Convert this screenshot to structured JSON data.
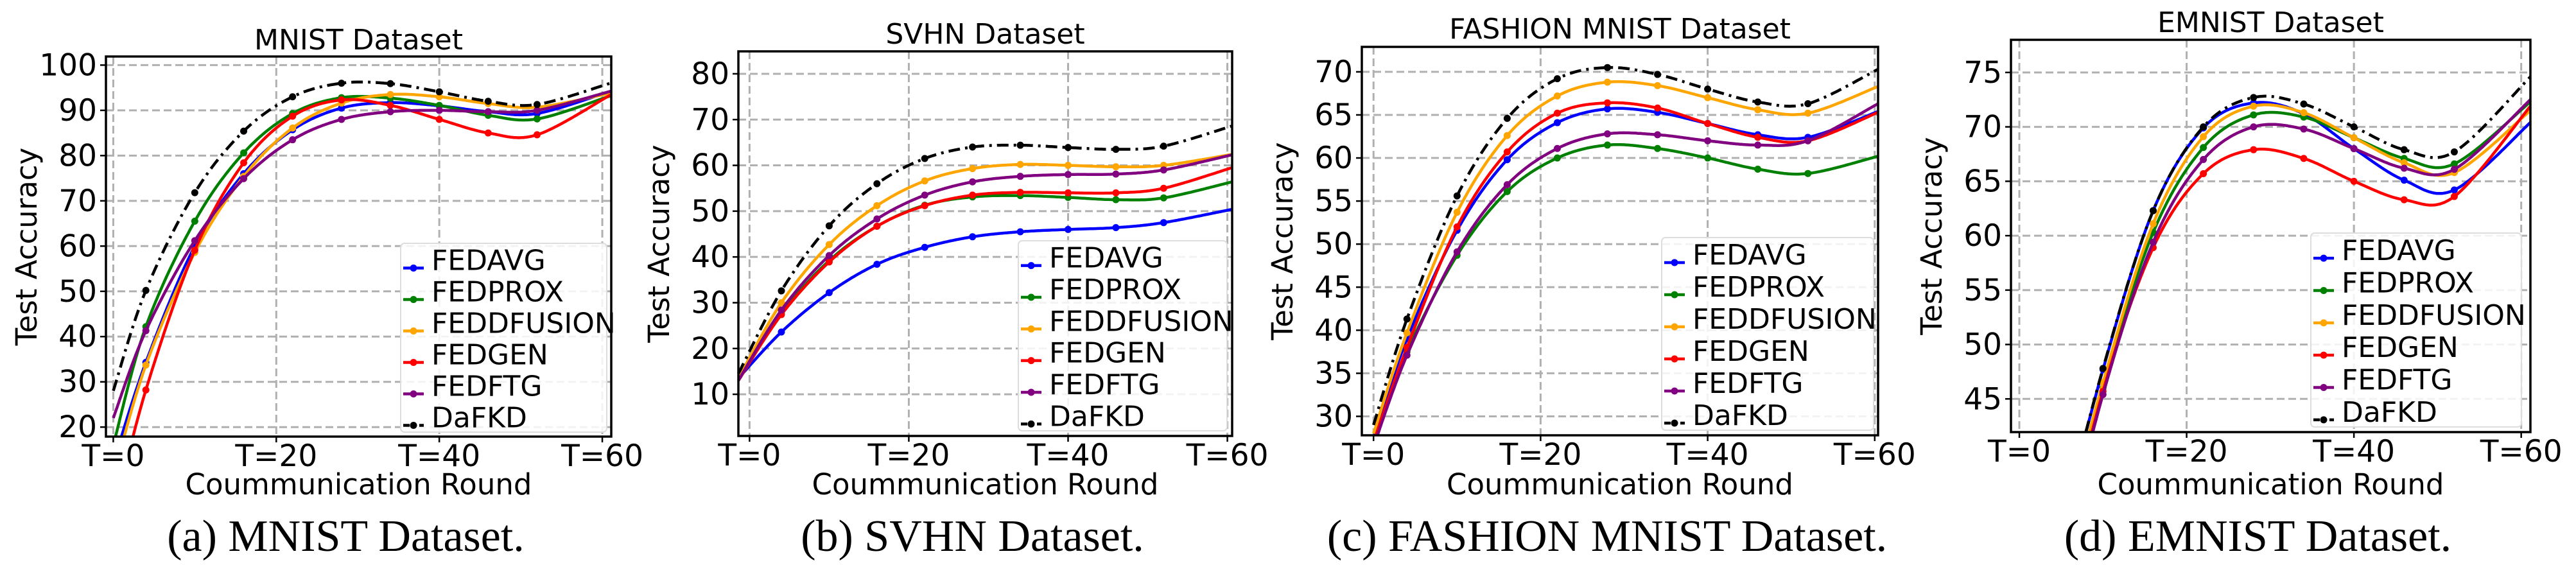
{
  "chart_data": [
    {
      "type": "line",
      "title": "MNIST Dataset",
      "caption": "(a) MNIST Dataset.",
      "xlabel": "Coummunication Round",
      "ylabel": "Test Accuracy",
      "xlim": [
        -0.9,
        61.1
      ],
      "ylim": [
        17.9,
        101.9
      ],
      "xticks": [
        0,
        20,
        40,
        60
      ],
      "xtick_labels": [
        "T=0",
        "T=20",
        "T=40",
        "T=60"
      ],
      "yticks": [
        20,
        30,
        40,
        50,
        60,
        70,
        80,
        90,
        100
      ],
      "grid": true,
      "legend": "lower-right",
      "x": [
        0,
        4,
        10,
        16,
        22,
        28,
        34,
        40,
        46,
        52,
        61
      ],
      "series": [
        {
          "name": "FEDAVG",
          "color": "#0000ff",
          "style": "solid",
          "values": [
            12,
            34.3,
            60,
            76,
            85.7,
            90.5,
            91.7,
            91,
            89.7,
            89.3,
            94.2
          ]
        },
        {
          "name": "FEDPROX",
          "color": "#008000",
          "style": "solid",
          "values": [
            16,
            42.2,
            65.5,
            80.6,
            89.3,
            92.8,
            92.7,
            91.1,
            88.9,
            88.1,
            93.2
          ]
        },
        {
          "name": "FEDDFUSION",
          "color": "#ffa500",
          "style": "solid",
          "values": [
            9,
            33.7,
            58.6,
            75.4,
            86.1,
            91.6,
            93.5,
            93,
            91.5,
            90.7,
            93.8
          ]
        },
        {
          "name": "FEDGEN",
          "color": "#ff0000",
          "style": "solid",
          "values": [
            0,
            28.2,
            59.1,
            78.4,
            88.7,
            92.3,
            91.1,
            88,
            85,
            84.6,
            93.4
          ]
        },
        {
          "name": "FEDFTG",
          "color": "#800080",
          "style": "solid",
          "values": [
            22,
            41.3,
            61.2,
            74.9,
            83.5,
            88,
            89.7,
            90,
            89.7,
            90,
            94.2
          ]
        },
        {
          "name": "DaFKD",
          "color": "#000000",
          "style": "dashdot",
          "values": [
            28,
            50.2,
            71.8,
            85.4,
            93,
            96,
            95.9,
            94.1,
            92,
            91.3,
            96
          ]
        }
      ]
    },
    {
      "type": "line",
      "title": "SVHN Dataset",
      "caption": "(b) SVHN Dataset.",
      "xlabel": "Coummunication Round",
      "ylabel": "Test Accuracy",
      "xlim": [
        -1.4,
        60.6
      ],
      "ylim": [
        0.9,
        84.9
      ],
      "xticks": [
        0,
        20,
        40,
        60
      ],
      "xtick_labels": [
        "T=0",
        "T=20",
        "T=40",
        "T=60"
      ],
      "yticks": [
        10,
        20,
        30,
        40,
        50,
        60,
        70,
        80
      ],
      "grid": true,
      "legend": "lower-right",
      "x": [
        -1.4,
        4,
        10,
        16,
        22,
        28,
        34,
        40,
        46,
        52,
        60.6
      ],
      "series": [
        {
          "name": "FEDAVG",
          "color": "#0000ff",
          "style": "solid",
          "values": [
            13.5,
            23.6,
            32.2,
            38.4,
            42.1,
            44.4,
            45.5,
            46,
            46.4,
            47.5,
            50.4
          ]
        },
        {
          "name": "FEDPROX",
          "color": "#008000",
          "style": "solid",
          "values": [
            13,
            27.6,
            39.2,
            46.7,
            51.3,
            53.1,
            53.4,
            53,
            52.5,
            52.9,
            56.4
          ]
        },
        {
          "name": "FEDDFUSION",
          "color": "#ffa500",
          "style": "solid",
          "values": [
            13.5,
            30,
            42.7,
            51.2,
            56.6,
            59.3,
            60.2,
            60,
            59.7,
            60,
            62.4
          ]
        },
        {
          "name": "FEDGEN",
          "color": "#ff0000",
          "style": "solid",
          "values": [
            13,
            27.4,
            38.9,
            46.7,
            51.2,
            53.5,
            54.1,
            54,
            54,
            55,
            59.5
          ]
        },
        {
          "name": "FEDFTG",
          "color": "#800080",
          "style": "solid",
          "values": [
            13,
            28.4,
            40.3,
            48.3,
            53.5,
            56.4,
            57.6,
            58,
            58.1,
            59,
            62.3
          ]
        },
        {
          "name": "DaFKD",
          "color": "#000000",
          "style": "dashdot",
          "values": [
            14.5,
            32.6,
            46.8,
            56,
            61.5,
            64,
            64.4,
            63.9,
            63.5,
            64.2,
            68.6
          ]
        }
      ]
    },
    {
      "type": "line",
      "title": "FASHION MNIST Dataset",
      "caption": "(c) FASHION MNIST Dataset.",
      "xlabel": "Coummunication Round",
      "ylabel": "Test Accuracy",
      "xlim": [
        -1.4,
        60.4
      ],
      "ylim": [
        27.8,
        72.9
      ],
      "xticks": [
        0,
        20,
        40,
        60
      ],
      "xtick_labels": [
        "T=0",
        "T=20",
        "T=40",
        "T=60"
      ],
      "yticks": [
        30,
        35,
        40,
        45,
        50,
        55,
        60,
        65,
        70
      ],
      "grid": true,
      "legend": "lower-right",
      "x": [
        0,
        4,
        10,
        16,
        22,
        28,
        34,
        40,
        46,
        52,
        60.4
      ],
      "series": [
        {
          "name": "FEDAVG",
          "color": "#0000ff",
          "style": "solid",
          "values": [
            27.5,
            39,
            51.6,
            59.8,
            64.1,
            65.7,
            65.3,
            64,
            62.7,
            62.4,
            65.4
          ]
        },
        {
          "name": "FEDPROX",
          "color": "#008000",
          "style": "solid",
          "values": [
            27,
            37.5,
            48.7,
            56.1,
            60,
            61.5,
            61.1,
            60,
            58.7,
            58.2,
            60.2
          ]
        },
        {
          "name": "FEDDFUSION",
          "color": "#ffa500",
          "style": "solid",
          "values": [
            28,
            39.7,
            53.7,
            62.6,
            67.2,
            68.8,
            68.4,
            67,
            65.6,
            65.2,
            68.3
          ]
        },
        {
          "name": "FEDGEN",
          "color": "#ff0000",
          "style": "solid",
          "values": [
            27,
            38,
            52,
            60.7,
            65.2,
            66.4,
            65.8,
            64,
            62.4,
            62,
            65.3
          ]
        },
        {
          "name": "FEDFTG",
          "color": "#800080",
          "style": "solid",
          "values": [
            26.5,
            37.1,
            49.1,
            56.9,
            61.1,
            62.8,
            62.7,
            62,
            61.5,
            62,
            66.3
          ]
        },
        {
          "name": "DaFKD",
          "color": "#000000",
          "style": "dashdot",
          "values": [
            29,
            41.3,
            55.6,
            64.6,
            69.2,
            70.5,
            69.7,
            68,
            66.5,
            66.3,
            70.3
          ]
        }
      ]
    },
    {
      "type": "line",
      "title": "EMNIST Dataset",
      "caption": "(d) EMNIST Dataset.",
      "xlabel": "Coummunication Round",
      "ylabel": "Test Accuracy",
      "xlim": [
        -1.0,
        61.1
      ],
      "ylim": [
        41.95,
        78
      ],
      "xticks": [
        0,
        20,
        40,
        60
      ],
      "xtick_labels": [
        "T=0",
        "T=20",
        "T=40",
        "T=60"
      ],
      "yticks": [
        45,
        50,
        55,
        60,
        65,
        70,
        75
      ],
      "grid": true,
      "legend": "lower-right",
      "x": [
        4,
        10,
        16,
        22,
        28,
        34,
        40,
        46,
        52,
        61.1
      ],
      "series": [
        {
          "name": "FEDAVG",
          "color": "#0000ff",
          "style": "solid",
          "values": [
            30,
            47.7,
            62.3,
            69.9,
            72.2,
            71.2,
            68,
            65.1,
            64.2,
            70.4
          ]
        },
        {
          "name": "FEDPROX",
          "color": "#008000",
          "style": "solid",
          "values": [
            28,
            46,
            60.3,
            68.1,
            71.1,
            70.9,
            69,
            67.1,
            66.6,
            72.3
          ]
        },
        {
          "name": "FEDDFUSION",
          "color": "#ffa500",
          "style": "solid",
          "values": [
            29,
            46.5,
            61.1,
            69.1,
            71.9,
            71.3,
            69,
            66.7,
            65.8,
            71.5
          ]
        },
        {
          "name": "FEDGEN",
          "color": "#ff0000",
          "style": "solid",
          "values": [
            27,
            45.7,
            58.9,
            65.7,
            67.9,
            67.1,
            65,
            63.3,
            63.6,
            71.9
          ]
        },
        {
          "name": "FEDFTG",
          "color": "#800080",
          "style": "solid",
          "values": [
            27,
            45.4,
            59.4,
            67,
            70,
            69.8,
            68,
            66.2,
            66.1,
            72.5
          ]
        },
        {
          "name": "DaFKD",
          "color": "#000000",
          "style": "dashdot",
          "values": [
            30,
            47.8,
            62.3,
            70,
            72.7,
            72.1,
            70,
            67.9,
            67.7,
            74.6
          ]
        }
      ]
    }
  ]
}
